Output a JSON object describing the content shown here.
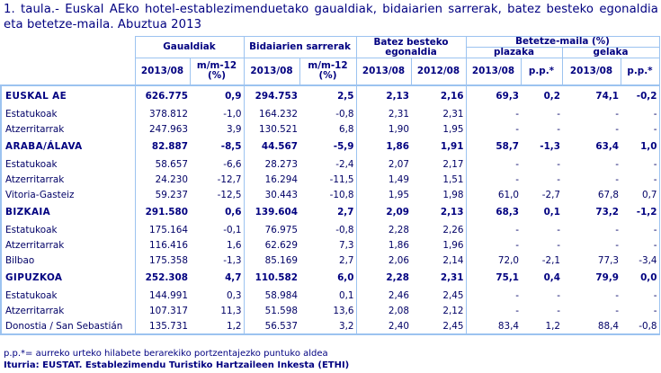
{
  "title": "1. taula.- Euskal AEko hotel-establezimenduetako gaualdiak, bidaiarien sarrerak, batez besteko egonaldia eta betetze-maila. Abuztua 2013",
  "header": {
    "groups": {
      "gaualdiak": "Gaualdiak",
      "bidaiarien": "Bidaiarien sarrerak",
      "batez": "Batez besteko egonaldia",
      "betetze": "Betetze-maila (%)",
      "plazaka": "plazaka",
      "gelaka": "gelaka"
    },
    "sub": {
      "c1": "2013/08",
      "c2": "m/m-12 (%)",
      "c3": "2013/08",
      "c4": "m/m-12 (%)",
      "c5": "2013/08",
      "c6": "2012/08",
      "c7": "2013/08",
      "c8": "p.p.*",
      "c9": "2013/08",
      "c10": "p.p.*"
    }
  },
  "rows": [
    {
      "label": "EUSKAL AE",
      "bold": true,
      "v": [
        "626.775",
        "0,9",
        "294.753",
        "2,5",
        "2,13",
        "2,16",
        "69,3",
        "0,2",
        "74,1",
        "-0,2"
      ]
    },
    {
      "label": "Estatukoak",
      "bold": false,
      "v": [
        "378.812",
        "-1,0",
        "164.232",
        "-0,8",
        "2,31",
        "2,31",
        "-",
        "-",
        "-",
        "-"
      ]
    },
    {
      "label": "Atzerritarrak",
      "bold": false,
      "v": [
        "247.963",
        "3,9",
        "130.521",
        "6,8",
        "1,90",
        "1,95",
        "-",
        "-",
        "-",
        "-"
      ]
    },
    {
      "label": "ARABA/ÁLAVA",
      "bold": true,
      "v": [
        "82.887",
        "-8,5",
        "44.567",
        "-5,9",
        "1,86",
        "1,91",
        "58,7",
        "-1,3",
        "63,4",
        "1,0"
      ]
    },
    {
      "label": "Estatukoak",
      "bold": false,
      "v": [
        "58.657",
        "-6,6",
        "28.273",
        "-2,4",
        "2,07",
        "2,17",
        "-",
        "-",
        "-",
        "-"
      ]
    },
    {
      "label": "Atzerritarrak",
      "bold": false,
      "v": [
        "24.230",
        "-12,7",
        "16.294",
        "-11,5",
        "1,49",
        "1,51",
        "-",
        "-",
        "-",
        "-"
      ]
    },
    {
      "label": "Vitoria-Gasteiz",
      "bold": false,
      "v": [
        "59.237",
        "-12,5",
        "30.443",
        "-10,8",
        "1,95",
        "1,98",
        "61,0",
        "-2,7",
        "67,8",
        "0,7"
      ]
    },
    {
      "label": "BIZKAIA",
      "bold": true,
      "v": [
        "291.580",
        "0,6",
        "139.604",
        "2,7",
        "2,09",
        "2,13",
        "68,3",
        "0,1",
        "73,2",
        "-1,2"
      ]
    },
    {
      "label": "Estatukoak",
      "bold": false,
      "v": [
        "175.164",
        "-0,1",
        "76.975",
        "-0,8",
        "2,28",
        "2,26",
        "-",
        "-",
        "-",
        "-"
      ]
    },
    {
      "label": "Atzerritarrak",
      "bold": false,
      "v": [
        "116.416",
        "1,6",
        "62.629",
        "7,3",
        "1,86",
        "1,96",
        "-",
        "-",
        "-",
        "-"
      ]
    },
    {
      "label": "Bilbao",
      "bold": false,
      "v": [
        "175.358",
        "-1,3",
        "85.169",
        "2,7",
        "2,06",
        "2,14",
        "72,0",
        "-2,1",
        "77,3",
        "-3,4"
      ]
    },
    {
      "label": "GIPUZKOA",
      "bold": true,
      "v": [
        "252.308",
        "4,7",
        "110.582",
        "6,0",
        "2,28",
        "2,31",
        "75,1",
        "0,4",
        "79,9",
        "0,0"
      ]
    },
    {
      "label": "Estatukoak",
      "bold": false,
      "v": [
        "144.991",
        "0,3",
        "58.984",
        "0,1",
        "2,46",
        "2,45",
        "-",
        "-",
        "-",
        "-"
      ]
    },
    {
      "label": "Atzerritarrak",
      "bold": false,
      "v": [
        "107.317",
        "11,3",
        "51.598",
        "13,6",
        "2,08",
        "2,12",
        "-",
        "-",
        "-",
        "-"
      ]
    },
    {
      "label": "Donostia / San Sebastián",
      "bold": false,
      "v": [
        "135.731",
        "1,2",
        "56.537",
        "3,2",
        "2,40",
        "2,45",
        "83,4",
        "1,2",
        "88,4",
        "-0,8"
      ]
    }
  ],
  "footer": {
    "note": "p.p.*= aurreko urteko hilabete berarekiko portzentajezko puntuko aldea",
    "source": "Iturria: EUSTAT. Establezimendu Turistiko Hartzaileen Inkesta (ETHI)"
  }
}
